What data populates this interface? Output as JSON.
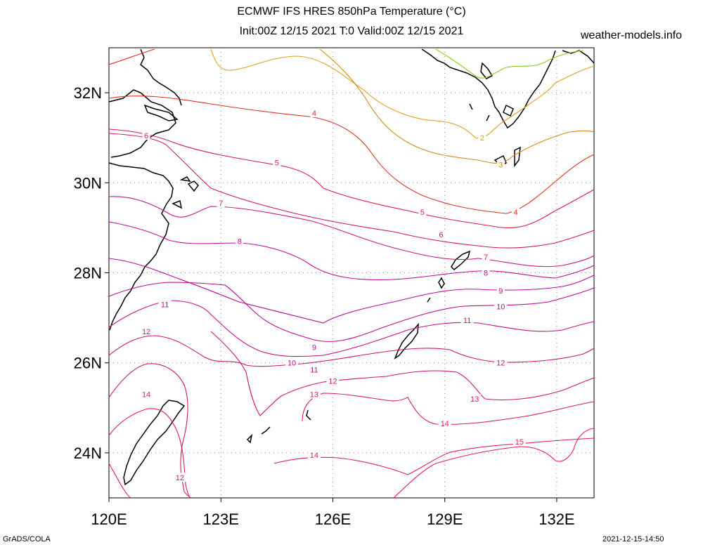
{
  "title": {
    "line1": "ECMWF IFS HRES 850hPa Temperature (°C)",
    "line2": "Init:00Z 12/15 2021 T:0 Valid:00Z 12/15 2021"
  },
  "source": "weather-models.info",
  "footer": {
    "left": "GrADS/COLA",
    "right": "2021-12-15-14:50"
  },
  "map": {
    "lon_range": [
      120,
      133
    ],
    "lat_range": [
      23,
      33
    ],
    "x_ticks": [
      {
        "lon": 120,
        "label": "120E"
      },
      {
        "lon": 123,
        "label": "123E"
      },
      {
        "lon": 126,
        "label": "126E"
      },
      {
        "lon": 129,
        "label": "129E"
      },
      {
        "lon": 132,
        "label": "132E"
      }
    ],
    "y_ticks": [
      {
        "lat": 24,
        "label": "24N"
      },
      {
        "lat": 26,
        "label": "26N"
      },
      {
        "lat": 28,
        "label": "28N"
      },
      {
        "lat": 30,
        "label": "30N"
      },
      {
        "lat": 32,
        "label": "32N"
      }
    ],
    "grid": "dotted",
    "contour_colors": {
      "2": "#e0a020",
      "3": "#d08a10",
      "4": "#e03020",
      "5": "#d81c3c",
      "6": "#d01860",
      "7": "#c81880",
      "8": "#c0108c",
      "9": "#b80c9a",
      "10": "#c00c8c",
      "11": "#c8107c",
      "12": "#d01470",
      "13": "#d81864",
      "14": "#e01c58",
      "15": "#e82050",
      "1": "#90cc20"
    },
    "contour_labels": [
      {
        "text": "4",
        "lon": 125.5,
        "lat": 31.55
      },
      {
        "text": "4",
        "lon": 130.9,
        "lat": 29.35
      },
      {
        "text": "5",
        "lon": 124.5,
        "lat": 30.45
      },
      {
        "text": "5",
        "lon": 128.4,
        "lat": 29.35
      },
      {
        "text": "6",
        "lon": 121.0,
        "lat": 31.05
      },
      {
        "text": "6",
        "lon": 128.9,
        "lat": 28.85
      },
      {
        "text": "7",
        "lon": 123.0,
        "lat": 29.55
      },
      {
        "text": "7",
        "lon": 130.1,
        "lat": 28.35
      },
      {
        "text": "8",
        "lon": 123.5,
        "lat": 28.7
      },
      {
        "text": "8",
        "lon": 130.1,
        "lat": 28.0
      },
      {
        "text": "9",
        "lon": 125.5,
        "lat": 26.35
      },
      {
        "text": "9",
        "lon": 130.5,
        "lat": 27.6
      },
      {
        "text": "10",
        "lon": 124.9,
        "lat": 26.0
      },
      {
        "text": "10",
        "lon": 130.5,
        "lat": 27.25
      },
      {
        "text": "11",
        "lon": 121.5,
        "lat": 27.3
      },
      {
        "text": "11",
        "lon": 125.5,
        "lat": 25.85
      },
      {
        "text": "11",
        "lon": 129.6,
        "lat": 26.95
      },
      {
        "text": "12",
        "lon": 121.0,
        "lat": 26.7
      },
      {
        "text": "12",
        "lon": 126.0,
        "lat": 25.6
      },
      {
        "text": "12",
        "lon": 130.5,
        "lat": 26.0
      },
      {
        "text": "12",
        "lon": 121.9,
        "lat": 23.45
      },
      {
        "text": "13",
        "lon": 125.5,
        "lat": 25.3
      },
      {
        "text": "13",
        "lon": 129.8,
        "lat": 25.2
      },
      {
        "text": "14",
        "lon": 121.0,
        "lat": 25.3
      },
      {
        "text": "14",
        "lon": 125.5,
        "lat": 23.95
      },
      {
        "text": "14",
        "lon": 129.0,
        "lat": 24.65
      },
      {
        "text": "15",
        "lon": 131.0,
        "lat": 24.25
      },
      {
        "text": "2",
        "lon": 130.0,
        "lat": 31.0
      },
      {
        "text": "3",
        "lon": 130.5,
        "lat": 30.4
      }
    ]
  }
}
